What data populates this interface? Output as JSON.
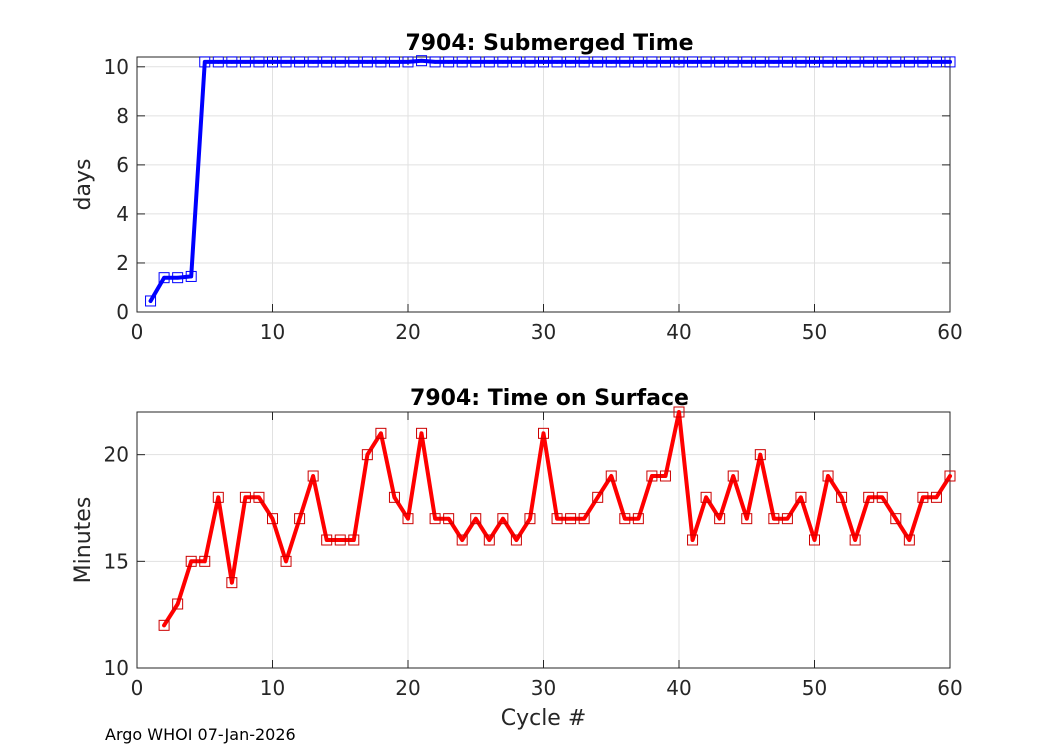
{
  "footer": {
    "text": "Argo WHOI 07-Jan-2026"
  },
  "chart_data": [
    {
      "type": "line",
      "title": "7904: Submerged Time",
      "xlabel": "",
      "ylabel": "days",
      "xlim": [
        0,
        60
      ],
      "ylim": [
        0,
        10.4
      ],
      "xticks": [
        0,
        10,
        20,
        30,
        40,
        50,
        60
      ],
      "yticks": [
        0,
        2,
        4,
        6,
        8,
        10
      ],
      "grid": true,
      "colors": {
        "line": "#0000ff",
        "marker": "#0000ff"
      },
      "series": [
        {
          "name": "Submerged Time",
          "x": [
            1,
            2,
            3,
            4,
            5,
            6,
            7,
            8,
            9,
            10,
            11,
            12,
            13,
            14,
            15,
            16,
            17,
            18,
            19,
            20,
            21,
            22,
            23,
            24,
            25,
            26,
            27,
            28,
            29,
            30,
            31,
            32,
            33,
            34,
            35,
            36,
            37,
            38,
            39,
            40,
            41,
            42,
            43,
            44,
            45,
            46,
            47,
            48,
            49,
            50,
            51,
            52,
            53,
            54,
            55,
            56,
            57,
            58,
            59,
            60
          ],
          "y": [
            0.45,
            1.4,
            1.4,
            1.45,
            10.2,
            10.2,
            10.2,
            10.2,
            10.2,
            10.2,
            10.2,
            10.2,
            10.2,
            10.2,
            10.2,
            10.2,
            10.2,
            10.2,
            10.2,
            10.2,
            10.25,
            10.2,
            10.2,
            10.2,
            10.2,
            10.2,
            10.2,
            10.2,
            10.2,
            10.2,
            10.2,
            10.2,
            10.2,
            10.2,
            10.2,
            10.2,
            10.2,
            10.2,
            10.2,
            10.2,
            10.2,
            10.2,
            10.2,
            10.2,
            10.2,
            10.2,
            10.2,
            10.2,
            10.2,
            10.2,
            10.2,
            10.2,
            10.2,
            10.2,
            10.2,
            10.2,
            10.2,
            10.2,
            10.2,
            10.2
          ]
        }
      ]
    },
    {
      "type": "line",
      "title": "7904: Time on Surface",
      "xlabel": "Cycle #",
      "ylabel": "Minutes",
      "xlim": [
        0,
        60
      ],
      "ylim": [
        10,
        22
      ],
      "xticks": [
        0,
        10,
        20,
        30,
        40,
        50,
        60
      ],
      "yticks": [
        10,
        15,
        20
      ],
      "grid": true,
      "colors": {
        "line": "#ff0000",
        "marker": "#cc0000"
      },
      "series": [
        {
          "name": "Time on Surface",
          "x": [
            2,
            3,
            4,
            5,
            6,
            7,
            8,
            9,
            10,
            11,
            12,
            13,
            14,
            15,
            16,
            17,
            18,
            19,
            20,
            21,
            22,
            23,
            24,
            25,
            26,
            27,
            28,
            29,
            30,
            31,
            32,
            33,
            34,
            35,
            36,
            37,
            38,
            39,
            40,
            41,
            42,
            43,
            44,
            45,
            46,
            47,
            48,
            49,
            50,
            51,
            52,
            53,
            54,
            55,
            56,
            57,
            58,
            59,
            60
          ],
          "y": [
            12,
            13,
            15,
            15,
            18,
            14,
            18,
            18,
            17,
            15,
            17,
            19,
            16,
            16,
            16,
            20,
            21,
            18,
            17,
            21,
            17,
            17,
            16,
            17,
            16,
            17,
            16,
            17,
            21,
            17,
            17,
            17,
            18,
            19,
            17,
            17,
            19,
            19,
            22,
            16,
            18,
            17,
            19,
            17,
            20,
            17,
            17,
            18,
            16,
            19,
            18,
            16,
            18,
            18,
            17,
            16,
            18,
            18,
            19
          ]
        }
      ]
    }
  ]
}
